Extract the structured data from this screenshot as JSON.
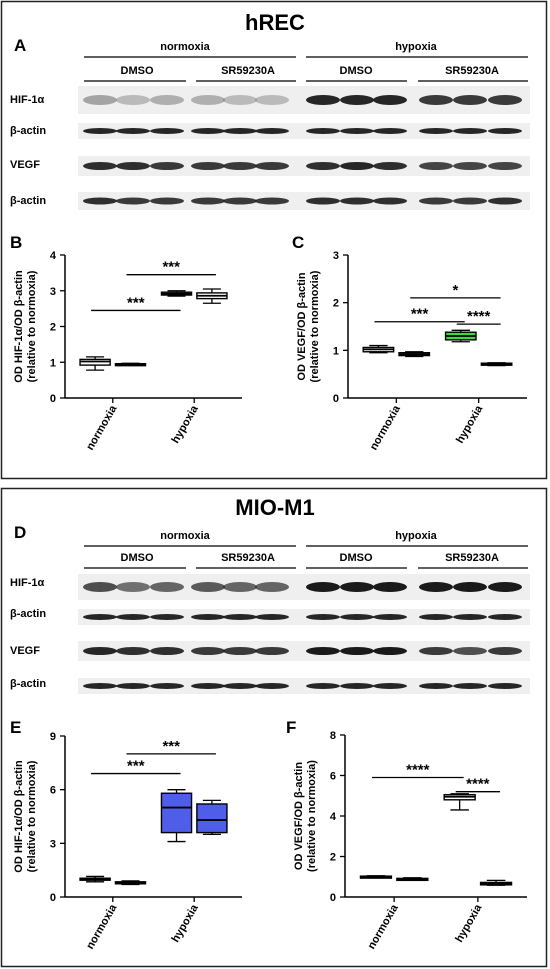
{
  "panel_top": {
    "title": "hREC",
    "letters": {
      "blot": "A",
      "hif": "B",
      "vegf": "C"
    },
    "condition_labels": [
      "normoxia",
      "hypoxia"
    ],
    "treatment_labels": [
      "DMSO",
      "SR59230A",
      "DMSO",
      "SR59230A"
    ],
    "blot_rows": [
      "HIF-1α",
      "β-actin",
      "VEGF",
      "β-actin"
    ]
  },
  "panel_bottom": {
    "title": "MIO-M1",
    "letters": {
      "blot": "D",
      "hif": "E",
      "vegf": "F"
    },
    "condition_labels": [
      "normoxia",
      "hypoxia"
    ],
    "treatment_labels": [
      "DMSO",
      "SR59230A",
      "DMSO",
      "SR59230A"
    ],
    "blot_rows": [
      "HIF-1α",
      "β-actin",
      "VEGF",
      "β-actin"
    ]
  },
  "band_colors": {
    "dark": "#1a1a1a",
    "membrane": "#efefef"
  },
  "chart_data": [
    {
      "id": "B",
      "type": "box",
      "ylabel": [
        "OD HIF-1α/OD β-actin",
        "(relative to normoxia)"
      ],
      "categories": [
        "normoxia",
        "hypoxia"
      ],
      "yticks": [
        0,
        1,
        2,
        3,
        4
      ],
      "ylim": [
        0,
        4
      ],
      "boxes": [
        {
          "group": 0,
          "min": 0.78,
          "q1": 0.92,
          "median": 1.02,
          "q3": 1.08,
          "max": 1.15,
          "fill": "#ffffff"
        },
        {
          "group": 0,
          "min": 0.93,
          "q1": 0.94,
          "median": 0.95,
          "q3": 0.96,
          "max": 0.97,
          "fill": "#ffffff"
        },
        {
          "group": 1,
          "min": 2.85,
          "q1": 2.88,
          "median": 2.92,
          "q3": 2.96,
          "max": 3.0,
          "fill": "#ffffff"
        },
        {
          "group": 1,
          "min": 2.65,
          "q1": 2.78,
          "median": 2.86,
          "q3": 2.94,
          "max": 3.05,
          "fill": "#ffffff"
        }
      ],
      "significance": [
        {
          "from": 0,
          "to": 2,
          "y": 2.45,
          "label": "***"
        },
        {
          "from": 1,
          "to": 3,
          "y": 3.45,
          "label": "***"
        }
      ]
    },
    {
      "id": "C",
      "type": "box",
      "ylabel": [
        "OD VEGF/OD β-actin",
        "(relative to normoxia)"
      ],
      "categories": [
        "normoxia",
        "hypoxia"
      ],
      "yticks": [
        0,
        1,
        2,
        3
      ],
      "ylim": [
        0,
        3
      ],
      "boxes": [
        {
          "group": 0,
          "min": 0.95,
          "q1": 0.97,
          "median": 1.02,
          "q3": 1.06,
          "max": 1.1,
          "fill": "#ffffff"
        },
        {
          "group": 0,
          "min": 0.87,
          "q1": 0.89,
          "median": 0.92,
          "q3": 0.95,
          "max": 0.97,
          "fill": "#ffffff"
        },
        {
          "group": 1,
          "min": 1.18,
          "q1": 1.22,
          "median": 1.3,
          "q3": 1.38,
          "max": 1.42,
          "fill": "#3dd93d"
        },
        {
          "group": 1,
          "min": 0.68,
          "q1": 0.69,
          "median": 0.71,
          "q3": 0.73,
          "max": 0.74,
          "fill": "#ffffff"
        }
      ],
      "significance": [
        {
          "from": 0,
          "to": 2,
          "y": 1.6,
          "label": "***"
        },
        {
          "from": 1,
          "to": 3,
          "y": 2.1,
          "label": "*"
        },
        {
          "from": 2,
          "to": 3,
          "y": 1.55,
          "label": "****"
        }
      ]
    },
    {
      "id": "E",
      "type": "box",
      "ylabel": [
        "OD HIF-1α/OD β-actin",
        "(relative to normoxia)"
      ],
      "categories": [
        "normoxia",
        "hypoxia"
      ],
      "yticks": [
        0,
        3,
        6,
        9
      ],
      "ylim": [
        0,
        9
      ],
      "boxes": [
        {
          "group": 0,
          "min": 0.85,
          "q1": 0.95,
          "median": 1.0,
          "q3": 1.05,
          "max": 1.15,
          "fill": "#ffffff"
        },
        {
          "group": 0,
          "min": 0.7,
          "q1": 0.75,
          "median": 0.8,
          "q3": 0.85,
          "max": 0.9,
          "fill": "#ffffff"
        },
        {
          "group": 1,
          "min": 3.1,
          "q1": 3.6,
          "median": 5.0,
          "q3": 5.8,
          "max": 6.0,
          "fill": "#4f5ee8"
        },
        {
          "group": 1,
          "min": 3.5,
          "q1": 3.6,
          "median": 4.3,
          "q3": 5.2,
          "max": 5.4,
          "fill": "#4f5ee8"
        }
      ],
      "significance": [
        {
          "from": 0,
          "to": 2,
          "y": 6.9,
          "label": "***"
        },
        {
          "from": 1,
          "to": 3,
          "y": 8.0,
          "label": "***"
        }
      ]
    },
    {
      "id": "F",
      "type": "box",
      "ylabel": [
        "OD VEGF/OD β-actin",
        "(relative to normoxia)"
      ],
      "categories": [
        "normoxia",
        "hypoxia"
      ],
      "yticks": [
        0,
        2,
        4,
        6,
        8
      ],
      "ylim": [
        0,
        8
      ],
      "boxes": [
        {
          "group": 0,
          "min": 0.95,
          "q1": 0.97,
          "median": 1.0,
          "q3": 1.03,
          "max": 1.05,
          "fill": "#ffffff"
        },
        {
          "group": 0,
          "min": 0.82,
          "q1": 0.84,
          "median": 0.88,
          "q3": 0.92,
          "max": 0.95,
          "fill": "#ffffff"
        },
        {
          "group": 1,
          "min": 4.3,
          "q1": 4.8,
          "median": 4.95,
          "q3": 5.05,
          "max": 5.1,
          "fill": "#ffffff"
        },
        {
          "group": 1,
          "min": 0.58,
          "q1": 0.6,
          "median": 0.65,
          "q3": 0.72,
          "max": 0.82,
          "fill": "#ffffff"
        }
      ],
      "significance": [
        {
          "from": 0,
          "to": 2,
          "y": 5.9,
          "label": "****"
        },
        {
          "from": 2,
          "to": 3,
          "y": 5.2,
          "label": "****"
        }
      ]
    }
  ]
}
